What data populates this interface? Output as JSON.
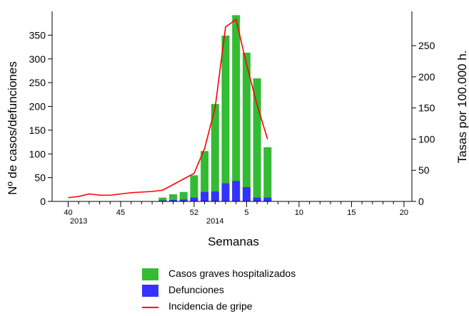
{
  "chart_data": {
    "type": "bar",
    "xlabel": "Semanas",
    "ylabel_left": "Nº de casos/defunciones",
    "ylabel_right": "Tasas por 100.000 h.",
    "ylim_left": [
      0,
      400
    ],
    "ylim_right": [
      0,
      305
    ],
    "yticks_left": [
      0,
      50,
      100,
      150,
      200,
      250,
      300,
      350
    ],
    "yticks_right": [
      0,
      50,
      100,
      150,
      200,
      250
    ],
    "x_axis": {
      "start_week": 40,
      "week_count": 33,
      "tick_labels": [
        {
          "label": "40",
          "index": 0
        },
        {
          "label": "45",
          "index": 5
        },
        {
          "label": "52",
          "index": 12
        },
        {
          "label": "5",
          "index": 17
        },
        {
          "label": "10",
          "index": 22
        },
        {
          "label": "15",
          "index": 27
        },
        {
          "label": "20",
          "index": 32
        }
      ],
      "year_labels": [
        {
          "label": "2013",
          "index": 1
        },
        {
          "label": "2014",
          "index": 14
        }
      ]
    },
    "week_index": [
      9,
      10,
      11,
      12,
      13,
      14,
      15,
      16,
      17,
      18,
      19,
      20
    ],
    "series": [
      {
        "name": "Casos graves hospitalizados",
        "type": "bar",
        "axis": "left",
        "color": "#33bb33",
        "values": [
          8,
          15,
          20,
          55,
          106,
          205,
          349,
          392,
          313,
          259,
          114,
          0
        ]
      },
      {
        "name": "Defunciones",
        "type": "bar",
        "axis": "left",
        "color": "#3333ff",
        "values": [
          2,
          3,
          4,
          8,
          20,
          21,
          38,
          43,
          30,
          8,
          8,
          0
        ]
      },
      {
        "name": "Incidencia de gripe",
        "type": "line",
        "axis": "right",
        "color": "#ff0000",
        "x": [
          0,
          1,
          2,
          3,
          4,
          5,
          6,
          7,
          8,
          9,
          10,
          11,
          12,
          13,
          14,
          15,
          16,
          17,
          18,
          19,
          20
        ],
        "values": [
          6,
          8,
          12,
          10,
          10,
          12,
          14,
          15,
          16,
          18,
          27,
          36,
          45,
          85,
          150,
          280,
          292,
          220,
          155,
          100,
          null
        ]
      }
    ],
    "legend_position": "bottom"
  }
}
